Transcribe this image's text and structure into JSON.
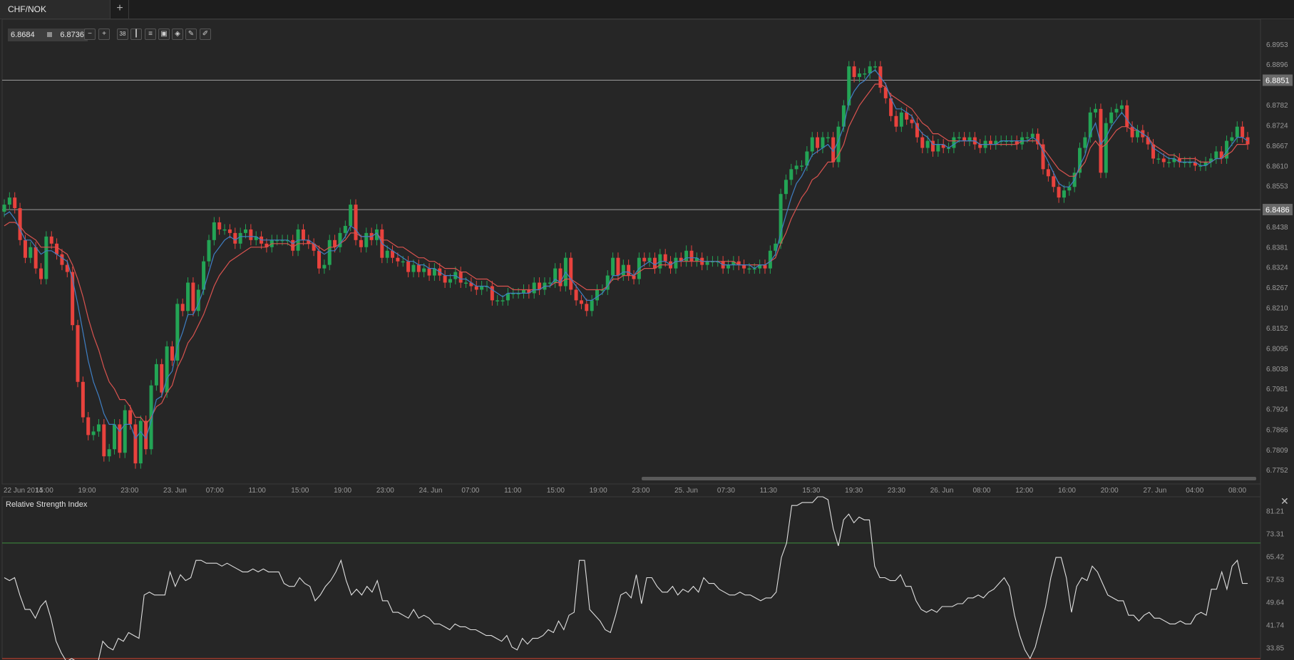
{
  "tab": {
    "symbol": "CHF/NOK",
    "add_label": "+"
  },
  "quote": {
    "bid": "6.8684",
    "ask": "6.8736"
  },
  "toolbar": {
    "icons": [
      "zoom-out-icon",
      "zoom-in-icon",
      "period-icon",
      "candle-type-icon",
      "indicators-icon",
      "compare-icon",
      "objects-icon",
      "draw-icon",
      "pen-icon"
    ],
    "period_label": "38"
  },
  "chart_data": [
    {
      "type": "candlestick",
      "title": "CHF/NOK",
      "y_ticks": [
        "6.8953",
        "6.8896",
        "6.8782",
        "6.8724",
        "6.8667",
        "6.8610",
        "6.8553",
        "6.8438",
        "6.8381",
        "6.8324",
        "6.8267",
        "6.8210",
        "6.8152",
        "6.8095",
        "6.8038",
        "6.7981",
        "6.7924",
        "6.7866",
        "6.7809",
        "6.7752"
      ],
      "ylim": [
        6.7712,
        6.9023
      ],
      "x_ticks": [
        "22 Jun 2014",
        "15:00",
        "19:00",
        "23:00",
        "23. Jun",
        "07:00",
        "11:00",
        "15:00",
        "19:00",
        "23:00",
        "24. Jun",
        "07:00",
        "11:00",
        "15:00",
        "19:00",
        "23:00",
        "25. Jun",
        "07:30",
        "11:30",
        "15:30",
        "19:30",
        "23:30",
        "26. Jun",
        "08:00",
        "12:00",
        "16:00",
        "20:00",
        "27. Jun",
        "04:00",
        "08:00"
      ],
      "horizontal_lines": [
        6.8851,
        6.8486
      ],
      "colors": {
        "up": "#23a455",
        "down": "#e8423d",
        "ma_fast": "#3f7fc4",
        "ma_slow": "#d9534f",
        "hline": "#9a9a9a"
      },
      "close": [
        6.85,
        6.852,
        6.849,
        6.84,
        6.835,
        6.838,
        6.832,
        6.829,
        6.841,
        6.839,
        6.836,
        6.833,
        6.831,
        6.816,
        6.8,
        6.79,
        6.785,
        6.786,
        6.788,
        6.779,
        6.781,
        6.788,
        6.78,
        6.792,
        6.788,
        6.777,
        6.789,
        6.781,
        6.799,
        6.805,
        6.797,
        6.81,
        6.806,
        6.822,
        6.82,
        6.828,
        6.82,
        6.826,
        6.834,
        6.84,
        6.845,
        6.843,
        6.843,
        6.842,
        6.839,
        6.842,
        6.843,
        6.84,
        6.841,
        6.839,
        6.838,
        6.84,
        6.84,
        6.84,
        6.84,
        6.837,
        6.843,
        6.84,
        6.839,
        6.837,
        6.832,
        6.833,
        6.84,
        6.838,
        6.842,
        6.844,
        6.85,
        6.84,
        6.838,
        6.842,
        6.84,
        6.843,
        6.835,
        6.837,
        6.835,
        6.834,
        6.834,
        6.831,
        6.833,
        6.831,
        6.832,
        6.83,
        6.832,
        6.83,
        6.828,
        6.829,
        6.831,
        6.828,
        6.828,
        6.827,
        6.826,
        6.827,
        6.827,
        6.823,
        6.823,
        6.823,
        6.825,
        6.825,
        6.825,
        6.826,
        6.825,
        6.828,
        6.826,
        6.828,
        6.828,
        6.832,
        6.827,
        6.835,
        6.826,
        6.823,
        6.822,
        6.82,
        6.823,
        6.826,
        6.826,
        6.83,
        6.835,
        6.83,
        6.833,
        6.83,
        6.829,
        6.835,
        6.834,
        6.835,
        6.832,
        6.836,
        6.834,
        6.832,
        6.835,
        6.834,
        6.837,
        6.834,
        6.835,
        6.833,
        6.834,
        6.834,
        6.834,
        6.832,
        6.833,
        6.834,
        6.833,
        6.832,
        6.832,
        6.832,
        6.833,
        6.832,
        6.837,
        6.839,
        6.853,
        6.857,
        6.86,
        6.861,
        6.861,
        6.865,
        6.869,
        6.866,
        6.869,
        6.869,
        6.862,
        6.872,
        6.878,
        6.889,
        6.886,
        6.887,
        6.887,
        6.889,
        6.889,
        6.883,
        6.88,
        6.875,
        6.872,
        6.876,
        6.874,
        6.873,
        6.869,
        6.866,
        6.868,
        6.865,
        6.867,
        6.866,
        6.866,
        6.869,
        6.869,
        6.868,
        6.869,
        6.867,
        6.866,
        6.868,
        6.867,
        6.868,
        6.868,
        6.868,
        6.868,
        6.867,
        6.869,
        6.869,
        6.87,
        6.867,
        6.86,
        6.858,
        6.855,
        6.852,
        6.854,
        6.855,
        6.859,
        6.866,
        6.869,
        6.876,
        6.877,
        6.859,
        6.873,
        6.876,
        6.877,
        6.878,
        6.872,
        6.869,
        6.871,
        6.869,
        6.867,
        6.863,
        6.863,
        6.862,
        6.862,
        6.863,
        6.862,
        6.862,
        6.862,
        6.861,
        6.861,
        6.862,
        6.863,
        6.865,
        6.863,
        6.868,
        6.869,
        6.872,
        6.869,
        6.867
      ],
      "ma_fast": [
        6.847,
        6.848,
        6.846,
        6.843,
        6.84,
        6.84,
        6.838,
        6.836,
        6.837,
        6.837,
        6.836,
        6.835,
        6.834,
        6.829,
        6.822,
        6.814,
        6.806,
        6.8,
        6.796,
        6.791,
        6.788,
        6.788,
        6.786,
        6.788,
        6.788,
        6.784,
        6.786,
        6.784,
        6.789,
        6.795,
        6.796,
        6.801,
        6.803,
        6.81,
        6.814,
        6.819,
        6.819,
        6.822,
        6.826,
        6.831,
        6.836,
        6.838,
        6.84,
        6.841,
        6.84,
        6.841,
        6.841,
        6.841,
        6.841,
        6.84,
        6.84,
        6.84,
        6.84,
        6.84,
        6.84,
        6.839,
        6.84,
        6.84,
        6.84,
        6.839,
        6.837,
        6.836,
        6.837,
        6.837,
        6.839,
        6.841,
        6.844,
        6.843,
        6.841,
        6.841,
        6.841,
        6.842,
        6.839,
        6.838,
        6.837,
        6.836,
        6.835,
        6.834,
        6.834,
        6.833,
        6.833,
        6.832,
        6.832,
        6.831,
        6.83,
        6.83,
        6.83,
        6.829,
        6.829,
        6.828,
        6.827,
        6.827,
        6.827,
        6.826,
        6.825,
        6.824,
        6.825,
        6.825,
        6.825,
        6.825,
        6.825,
        6.826,
        6.826,
        6.827,
        6.827,
        6.829,
        6.828,
        6.831,
        6.829,
        6.827,
        6.825,
        6.823,
        6.823,
        6.824,
        6.825,
        6.827,
        6.83,
        6.83,
        6.831,
        6.831,
        6.83,
        6.832,
        6.833,
        6.834,
        6.833,
        6.834,
        6.834,
        6.833,
        6.834,
        6.834,
        6.835,
        6.835,
        6.835,
        6.834,
        6.834,
        6.834,
        6.834,
        6.833,
        6.833,
        6.833,
        6.833,
        6.833,
        6.833,
        6.832,
        6.833,
        6.833,
        6.834,
        6.836,
        6.842,
        6.847,
        6.852,
        6.856,
        6.858,
        6.861,
        6.864,
        6.865,
        6.866,
        6.867,
        6.865,
        6.868,
        6.872,
        6.879,
        6.882,
        6.884,
        6.885,
        6.887,
        6.888,
        6.886,
        6.884,
        6.88,
        6.877,
        6.877,
        6.876,
        6.875,
        6.872,
        6.87,
        6.869,
        6.867,
        6.867,
        6.867,
        6.866,
        6.867,
        6.868,
        6.868,
        6.868,
        6.868,
        6.867,
        6.867,
        6.867,
        6.867,
        6.868,
        6.868,
        6.868,
        6.868,
        6.868,
        6.868,
        6.869,
        6.868,
        6.865,
        6.862,
        6.859,
        6.856,
        6.855,
        6.855,
        6.857,
        6.861,
        6.864,
        6.87,
        6.873,
        6.867,
        6.869,
        6.872,
        6.874,
        6.876,
        6.874,
        6.872,
        6.871,
        6.87,
        6.869,
        6.866,
        6.865,
        6.864,
        6.863,
        6.863,
        6.862,
        6.862,
        6.862,
        6.862,
        6.861,
        6.861,
        6.862,
        6.863,
        6.863,
        6.865,
        6.867,
        6.869,
        6.869,
        6.868
      ],
      "ma_slow": [
        6.844,
        6.845,
        6.845,
        6.844,
        6.842,
        6.841,
        6.84,
        6.838,
        6.838,
        6.838,
        6.838,
        6.837,
        6.836,
        6.833,
        6.829,
        6.824,
        6.818,
        6.813,
        6.809,
        6.804,
        6.8,
        6.798,
        6.795,
        6.795,
        6.793,
        6.79,
        6.79,
        6.788,
        6.79,
        6.793,
        6.794,
        6.797,
        6.799,
        6.804,
        6.807,
        6.811,
        6.813,
        6.816,
        6.819,
        6.823,
        6.827,
        6.83,
        6.832,
        6.834,
        6.835,
        6.836,
        6.837,
        6.838,
        6.838,
        6.838,
        6.838,
        6.839,
        6.839,
        6.839,
        6.839,
        6.838,
        6.839,
        6.839,
        6.839,
        6.839,
        6.838,
        6.837,
        6.838,
        6.838,
        6.839,
        6.84,
        6.842,
        6.842,
        6.841,
        6.841,
        6.841,
        6.842,
        6.84,
        6.84,
        6.839,
        6.838,
        6.838,
        6.837,
        6.836,
        6.835,
        6.835,
        6.834,
        6.834,
        6.833,
        6.832,
        6.832,
        6.832,
        6.831,
        6.831,
        6.83,
        6.829,
        6.829,
        6.829,
        6.828,
        6.827,
        6.827,
        6.827,
        6.826,
        6.826,
        6.826,
        6.826,
        6.826,
        6.826,
        6.827,
        6.827,
        6.828,
        6.828,
        6.829,
        6.829,
        6.828,
        6.827,
        6.826,
        6.826,
        6.826,
        6.826,
        6.827,
        6.829,
        6.829,
        6.83,
        6.83,
        6.83,
        6.831,
        6.832,
        6.832,
        6.832,
        6.833,
        6.833,
        6.833,
        6.834,
        6.834,
        6.834,
        6.834,
        6.834,
        6.834,
        6.834,
        6.834,
        6.834,
        6.834,
        6.834,
        6.834,
        6.833,
        6.833,
        6.833,
        6.833,
        6.833,
        6.833,
        6.834,
        6.835,
        6.839,
        6.842,
        6.846,
        6.849,
        6.852,
        6.854,
        6.857,
        6.858,
        6.86,
        6.862,
        6.862,
        6.864,
        6.867,
        6.872,
        6.875,
        6.878,
        6.88,
        6.882,
        6.884,
        6.884,
        6.883,
        6.881,
        6.88,
        6.879,
        6.878,
        6.877,
        6.875,
        6.873,
        6.872,
        6.87,
        6.87,
        6.869,
        6.868,
        6.868,
        6.868,
        6.868,
        6.868,
        6.868,
        6.867,
        6.867,
        6.867,
        6.867,
        6.867,
        6.867,
        6.867,
        6.867,
        6.868,
        6.868,
        6.868,
        6.868,
        6.866,
        6.864,
        6.862,
        6.86,
        6.859,
        6.858,
        6.858,
        6.86,
        6.862,
        6.866,
        6.868,
        6.866,
        6.867,
        6.869,
        6.871,
        6.872,
        6.872,
        6.871,
        6.871,
        6.87,
        6.869,
        6.867,
        6.866,
        6.865,
        6.864,
        6.864,
        6.863,
        6.863,
        6.863,
        6.863,
        6.862,
        6.862,
        6.862,
        6.863,
        6.863,
        6.864,
        6.865,
        6.867,
        6.867,
        6.867
      ]
    },
    {
      "type": "line",
      "title": "Relative Strength Index",
      "y_ticks": [
        "81.21",
        "73.31",
        "65.42",
        "57.53",
        "49.64",
        "41.74",
        "33.85"
      ],
      "ylim": [
        30,
        86
      ],
      "levels": [
        70,
        30
      ],
      "level_colors": [
        "#3f8f3f",
        "#d9432f"
      ],
      "line_color": "#e0e0e0",
      "values": [
        58,
        57,
        58,
        52,
        47,
        47,
        44,
        48,
        50,
        44,
        36,
        32,
        29,
        30,
        29,
        27,
        29,
        27,
        28,
        36,
        34,
        33,
        37,
        36,
        39,
        38,
        37,
        52,
        53,
        52,
        52,
        52,
        60,
        55,
        59,
        57,
        58,
        64,
        64,
        63,
        63,
        63,
        62,
        63,
        62,
        61,
        60,
        60,
        61,
        60,
        61,
        60,
        60,
        60,
        56,
        55,
        55,
        58,
        56,
        55,
        50,
        52,
        55,
        57,
        60,
        64,
        57,
        52,
        54,
        52,
        55,
        53,
        57,
        50,
        50,
        46,
        46,
        45,
        44,
        47,
        44,
        45,
        44,
        42,
        42,
        41,
        40,
        42,
        41,
        41,
        40,
        40,
        39,
        38,
        38,
        37,
        36,
        38,
        34,
        33,
        37,
        35,
        37,
        37,
        38,
        40,
        39,
        43,
        40,
        45,
        46,
        64,
        64,
        47,
        45,
        43,
        40,
        39,
        45,
        52,
        53,
        51,
        59,
        49,
        58,
        58,
        55,
        53,
        53,
        55,
        52,
        54,
        53,
        55,
        53,
        58,
        56,
        56,
        54,
        53,
        52,
        52,
        53,
        52,
        52,
        51,
        50,
        51,
        51,
        53,
        65,
        70,
        83,
        83,
        84,
        84,
        84,
        86,
        86,
        85,
        75,
        69,
        78,
        80,
        77,
        79,
        78,
        78,
        62,
        58,
        58,
        57,
        57,
        59,
        55,
        55,
        50,
        47,
        46,
        47,
        46,
        48,
        48,
        48,
        49,
        49,
        51,
        51,
        52,
        51,
        53,
        54,
        56,
        58,
        55,
        45,
        38,
        33,
        30,
        34,
        41,
        48,
        58,
        65,
        65,
        58,
        46,
        55,
        58,
        57,
        62,
        60,
        56,
        52,
        51,
        50,
        50,
        45,
        45,
        43,
        45,
        46,
        44,
        44,
        43,
        42,
        42,
        43,
        42,
        42,
        45,
        46,
        45,
        54,
        54,
        60,
        54,
        62,
        64,
        56,
        56
      ],
      "x_start": "22 Jun 2014"
    }
  ]
}
